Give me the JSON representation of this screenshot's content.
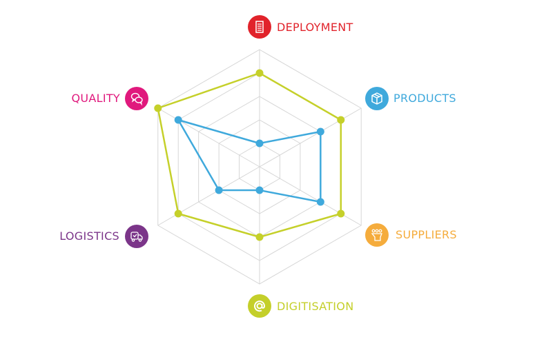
{
  "chart_data": {
    "type": "radar",
    "axes": [
      {
        "label": "DEPLOYMENT",
        "color": "#e1232b",
        "icon": "clipboard-list-icon"
      },
      {
        "label": "PRODUCTS",
        "color": "#3fa9dc",
        "icon": "box-icon"
      },
      {
        "label": "SUPPLIERS",
        "color": "#f5ac3c",
        "icon": "people-group-icon"
      },
      {
        "label": "DIGITISATION",
        "color": "#c4cf2a",
        "icon": "at-sign-icon"
      },
      {
        "label": "LOGISTICS",
        "color": "#7b3589",
        "icon": "delivery-truck-icon"
      },
      {
        "label": "QUALITY",
        "color": "#e0197d",
        "icon": "chat-bubbles-icon"
      }
    ],
    "range": [
      0,
      5
    ],
    "grid_levels": 5,
    "grid": true,
    "series": [
      {
        "color": "#c5d02a",
        "values": [
          4,
          4,
          4,
          3,
          4,
          5
        ]
      },
      {
        "color": "#3fa9dc",
        "values": [
          1,
          3,
          3,
          1,
          2,
          4
        ]
      }
    ]
  }
}
